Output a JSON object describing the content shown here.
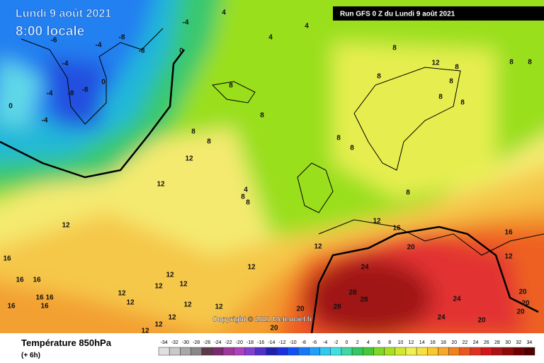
{
  "date": "Lundi 9 août 2021",
  "time": "8:00 locale",
  "run": "Run GFS 0 Z du Lundi 9 août 2021",
  "copyright": "Copyright © 2021 Meteociel.fr",
  "parameter": "Température 850hPa",
  "lead": "(+ 6h)",
  "scale": [
    -34,
    -32,
    -30,
    -28,
    -26,
    -24,
    -22,
    -20,
    -18,
    -16,
    -14,
    -12,
    -10,
    -8,
    -6,
    -4,
    -2,
    0,
    2,
    4,
    6,
    8,
    10,
    12,
    14,
    16,
    18,
    20,
    22,
    24,
    26,
    28,
    30,
    32,
    34
  ],
  "map_labels": [
    4,
    4,
    4,
    -8,
    -4,
    -8,
    -6,
    -4,
    0,
    -4,
    0,
    -4,
    -8,
    -8,
    0,
    -4,
    8,
    8,
    8,
    8,
    12,
    12,
    4,
    8,
    8,
    12,
    8,
    8,
    8,
    8,
    8,
    12,
    8,
    8,
    8,
    8,
    8,
    8,
    12,
    16,
    12,
    20,
    16,
    12,
    12,
    24,
    12,
    12,
    12,
    12,
    12,
    12,
    12,
    28,
    28,
    28,
    20,
    24,
    24,
    20,
    20,
    20,
    20,
    20,
    16,
    16,
    16,
    16,
    16,
    16,
    16,
    12,
    12,
    12
  ]
}
